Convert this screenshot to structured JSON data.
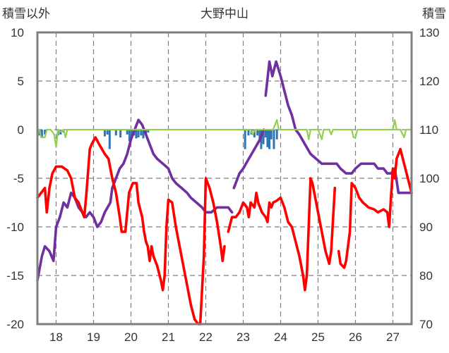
{
  "chart_data": {
    "type": "line",
    "title": "大野中山",
    "left_axis_label": "積雪以外",
    "right_axis_label": "積雪",
    "left_ylim": [
      -20,
      10
    ],
    "left_ticks": [
      "10",
      "5",
      "0",
      "-5",
      "-10",
      "-15",
      "-20"
    ],
    "right_ylim": [
      70,
      130
    ],
    "right_ticks": [
      "130",
      "120",
      "110",
      "100",
      "90",
      "80",
      "70"
    ],
    "x_day_range": [
      17.5,
      27.5
    ],
    "x_ticks": [
      "18",
      "19",
      "20",
      "21",
      "22",
      "23",
      "24",
      "25",
      "26",
      "27"
    ],
    "grid": "dashed vertical and horizontal",
    "colors": {
      "temperature": "#ff0000",
      "snow_depth": "#7030a0",
      "precip_bars": "#2e75b6",
      "green_line": "#92d050",
      "frame": "#7f7f7f"
    },
    "series": [
      {
        "axis": "right",
        "color": "#7030a0",
        "segments": [
          [
            [
              17.5,
              79
            ],
            [
              17.62,
              84
            ],
            [
              17.7,
              86
            ],
            [
              17.82,
              85
            ],
            [
              17.93,
              83
            ],
            [
              18.0,
              90
            ],
            [
              18.1,
              92
            ],
            [
              18.2,
              95
            ],
            [
              18.3,
              94
            ],
            [
              18.4,
              97
            ],
            [
              18.5,
              96
            ],
            [
              18.6,
              94
            ],
            [
              18.7,
              93
            ],
            [
              18.8,
              92
            ],
            [
              18.9,
              93
            ],
            [
              19.0,
              92
            ],
            [
              19.1,
              90
            ],
            [
              19.2,
              91
            ],
            [
              19.3,
              93
            ],
            [
              19.45,
              95
            ],
            [
              19.5,
              98
            ],
            [
              19.6,
              100
            ],
            [
              19.7,
              102
            ],
            [
              19.8,
              103
            ],
            [
              19.9,
              105
            ],
            [
              20.0,
              108
            ],
            [
              20.1,
              110
            ],
            [
              20.2,
              112
            ],
            [
              20.3,
              111
            ],
            [
              20.4,
              109
            ],
            [
              20.5,
              107
            ],
            [
              20.6,
              105
            ],
            [
              20.7,
              104
            ],
            [
              20.85,
              103
            ],
            [
              21.0,
              102
            ],
            [
              21.1,
              100
            ],
            [
              21.2,
              99
            ],
            [
              21.35,
              98
            ],
            [
              21.5,
              97
            ],
            [
              21.6,
              96
            ],
            [
              21.75,
              95
            ],
            [
              21.9,
              94
            ],
            [
              22.0,
              93
            ],
            [
              22.15,
              93
            ],
            [
              22.3,
              94
            ],
            [
              22.45,
              94
            ],
            [
              22.6,
              94
            ],
            [
              22.7,
              93
            ]
          ],
          [
            [
              22.75,
              98
            ],
            [
              22.9,
              101
            ],
            [
              23.0,
              102
            ],
            [
              23.15,
              104
            ],
            [
              23.3,
              106
            ],
            [
              23.45,
              108
            ],
            [
              23.55,
              110
            ]
          ],
          [
            [
              23.6,
              117
            ],
            [
              23.7,
              124
            ],
            [
              23.78,
              121
            ],
            [
              23.88,
              124
            ],
            [
              24.0,
              121
            ],
            [
              24.1,
              118
            ],
            [
              24.2,
              115
            ],
            [
              24.3,
              113
            ],
            [
              24.4,
              110
            ],
            [
              24.5,
              109
            ],
            [
              24.65,
              107
            ],
            [
              24.8,
              105
            ],
            [
              24.95,
              104
            ],
            [
              25.1,
              103
            ],
            [
              25.3,
              103
            ],
            [
              25.5,
              103
            ],
            [
              25.6,
              102
            ],
            [
              25.75,
              101
            ],
            [
              25.9,
              101
            ],
            [
              26.0,
              102
            ],
            [
              26.15,
              103
            ],
            [
              26.35,
              103
            ],
            [
              26.5,
              103
            ],
            [
              26.6,
              102
            ],
            [
              26.75,
              102
            ],
            [
              26.85,
              101
            ],
            [
              26.95,
              101
            ],
            [
              27.05,
              102
            ],
            [
              27.15,
              97
            ],
            [
              27.3,
              97
            ],
            [
              27.5,
              97
            ]
          ]
        ]
      },
      {
        "axis": "left",
        "color": "#ff0000",
        "segments": [
          [
            [
              17.5,
              -7
            ],
            [
              17.6,
              -6.5
            ],
            [
              17.7,
              -6
            ],
            [
              17.75,
              -8.5
            ],
            [
              17.82,
              -6
            ],
            [
              17.9,
              -4.5
            ],
            [
              18.0,
              -3.8
            ],
            [
              18.15,
              -3.8
            ],
            [
              18.3,
              -4.2
            ],
            [
              18.4,
              -5
            ],
            [
              18.5,
              -7
            ],
            [
              18.6,
              -7.5
            ],
            [
              18.7,
              -8.5
            ],
            [
              18.75,
              -9
            ],
            [
              18.8,
              -7
            ],
            [
              18.9,
              -2
            ],
            [
              18.95,
              -1.5
            ],
            [
              19.05,
              -0.8
            ],
            [
              19.15,
              -1.5
            ],
            [
              19.3,
              -2.5
            ],
            [
              19.4,
              -3
            ],
            [
              19.5,
              -5
            ],
            [
              19.6,
              -6.5
            ],
            [
              19.7,
              -9
            ],
            [
              19.75,
              -10.5
            ],
            [
              19.85,
              -10.5
            ],
            [
              19.95,
              -6.5
            ],
            [
              20.05,
              -5.5
            ],
            [
              20.15,
              -5.5
            ],
            [
              20.2,
              -7.5
            ],
            [
              20.3,
              -9
            ],
            [
              20.35,
              -10.5
            ],
            [
              20.4,
              -11.5
            ],
            [
              20.45,
              -12
            ],
            [
              20.5,
              -13.5
            ],
            [
              20.55,
              -12
            ],
            [
              20.6,
              -13
            ],
            [
              20.7,
              -14
            ],
            [
              20.8,
              -15.5
            ],
            [
              20.85,
              -16.5
            ],
            [
              20.9,
              -15
            ],
            [
              20.95,
              -10
            ],
            [
              21.0,
              -7.2
            ],
            [
              21.1,
              -7.5
            ],
            [
              21.2,
              -10
            ],
            [
              21.3,
              -12
            ],
            [
              21.4,
              -14
            ],
            [
              21.5,
              -16
            ],
            [
              21.6,
              -18
            ],
            [
              21.7,
              -19.5
            ],
            [
              21.8,
              -20
            ],
            [
              21.85,
              -20
            ],
            [
              21.95,
              -13
            ],
            [
              22.0,
              -5
            ],
            [
              22.1,
              -6
            ],
            [
              22.2,
              -7.5
            ],
            [
              22.3,
              -9.5
            ],
            [
              22.4,
              -12
            ],
            [
              22.45,
              -13.5
            ],
            [
              22.5,
              -12
            ]
          ],
          [
            [
              22.6,
              -10.5
            ],
            [
              22.7,
              -9
            ],
            [
              22.8,
              -9
            ],
            [
              22.9,
              -8.5
            ],
            [
              23.0,
              -7.5
            ],
            [
              23.1,
              -8
            ],
            [
              23.15,
              -9
            ],
            [
              23.2,
              -7.5
            ],
            [
              23.3,
              -8
            ],
            [
              23.35,
              -6.5
            ],
            [
              23.4,
              -7.5
            ],
            [
              23.5,
              -8.5
            ],
            [
              23.6,
              -9
            ],
            [
              23.65,
              -9.5
            ],
            [
              23.7,
              -7.5
            ],
            [
              23.75,
              -8
            ],
            [
              23.8,
              -7.5
            ],
            [
              23.9,
              -7.3
            ],
            [
              24.0,
              -7
            ],
            [
              24.1,
              -8
            ],
            [
              24.2,
              -9.5
            ],
            [
              24.3,
              -10
            ],
            [
              24.4,
              -11.5
            ],
            [
              24.5,
              -13
            ],
            [
              24.6,
              -15
            ],
            [
              24.65,
              -16.5
            ],
            [
              24.7,
              -15
            ],
            [
              24.8,
              -5
            ],
            [
              24.85,
              -5.5
            ],
            [
              24.9,
              -6.5
            ],
            [
              25.0,
              -8.5
            ],
            [
              25.1,
              -10.5
            ],
            [
              25.2,
              -12.5
            ],
            [
              25.3,
              -13.8
            ],
            [
              25.35,
              -12.5
            ],
            [
              25.45,
              -6
            ]
          ],
          [
            [
              25.55,
              -12.5
            ],
            [
              25.6,
              -13.8
            ],
            [
              25.7,
              -14.2
            ],
            [
              25.75,
              -13.5
            ],
            [
              25.8,
              -12
            ],
            [
              25.85,
              -10.5
            ],
            [
              25.9,
              -5.5
            ],
            [
              26.0,
              -6
            ],
            [
              26.1,
              -7
            ],
            [
              26.2,
              -7.5
            ],
            [
              26.35,
              -8
            ],
            [
              26.5,
              -8.2
            ],
            [
              26.6,
              -8.5
            ],
            [
              26.75,
              -8.2
            ],
            [
              26.85,
              -8.5
            ],
            [
              26.9,
              -10
            ],
            [
              26.95,
              -7
            ],
            [
              27.0,
              -4
            ],
            [
              27.05,
              -5
            ],
            [
              27.1,
              -3
            ],
            [
              27.2,
              -2
            ],
            [
              27.3,
              -3.5
            ],
            [
              27.4,
              -5
            ],
            [
              27.5,
              -6.5
            ]
          ]
        ]
      },
      {
        "axis": "left",
        "color": "#92d050",
        "segments": [
          [
            [
              17.5,
              0
            ],
            [
              17.55,
              0
            ],
            [
              17.6,
              -0.8
            ],
            [
              17.7,
              -0.8
            ],
            [
              17.75,
              0
            ],
            [
              17.85,
              0
            ],
            [
              17.95,
              -0.5
            ],
            [
              18.0,
              -1.8
            ],
            [
              18.05,
              0
            ],
            [
              18.12,
              -0.2
            ],
            [
              18.2,
              0
            ],
            [
              18.25,
              -0.8
            ],
            [
              18.3,
              0
            ],
            [
              23.1,
              0
            ],
            [
              23.2,
              0
            ],
            [
              23.25,
              -0.5
            ],
            [
              23.32,
              0
            ],
            [
              23.8,
              0
            ],
            [
              23.9,
              1
            ],
            [
              23.95,
              0
            ],
            [
              24.7,
              0
            ],
            [
              24.75,
              -1
            ],
            [
              24.8,
              0
            ],
            [
              25.0,
              0
            ],
            [
              25.05,
              -0.5
            ],
            [
              25.1,
              -1
            ],
            [
              25.15,
              0
            ],
            [
              25.3,
              0
            ],
            [
              25.35,
              -0.5
            ],
            [
              25.4,
              0
            ],
            [
              25.9,
              0
            ],
            [
              25.95,
              -0.8
            ],
            [
              26.0,
              -0.8
            ],
            [
              26.05,
              0
            ],
            [
              26.9,
              0
            ],
            [
              27.0,
              0
            ],
            [
              27.05,
              1
            ],
            [
              27.1,
              0
            ],
            [
              27.2,
              0
            ],
            [
              27.3,
              -0.8
            ],
            [
              27.35,
              0
            ],
            [
              27.5,
              0
            ]
          ]
        ]
      }
    ],
    "bars": {
      "axis": "left",
      "color": "#2e75b6",
      "points": [
        [
          17.56,
          -0.6
        ],
        [
          17.62,
          -0.8
        ],
        [
          17.7,
          -0.5
        ],
        [
          18.05,
          -0.6
        ],
        [
          18.12,
          -0.5
        ],
        [
          18.2,
          -0.3
        ],
        [
          19.3,
          -0.7
        ],
        [
          19.37,
          -0.5
        ],
        [
          19.43,
          -2.0
        ],
        [
          19.6,
          -0.6
        ],
        [
          19.72,
          -0.8
        ],
        [
          19.9,
          -0.5
        ],
        [
          19.96,
          -1.2
        ],
        [
          20.02,
          -0.8
        ],
        [
          20.08,
          -0.6
        ],
        [
          20.14,
          -0.9
        ],
        [
          20.2,
          -0.8
        ],
        [
          20.27,
          -0.6
        ],
        [
          20.33,
          -0.9
        ],
        [
          20.4,
          -0.5
        ],
        [
          20.46,
          -0.3
        ],
        [
          23.05,
          -2.0
        ],
        [
          23.14,
          -0.6
        ],
        [
          23.22,
          -0.5
        ],
        [
          23.3,
          -0.8
        ],
        [
          23.38,
          -0.6
        ],
        [
          23.44,
          -1.2
        ],
        [
          23.48,
          -2.0
        ],
        [
          23.54,
          -1.5
        ],
        [
          23.6,
          -0.8
        ],
        [
          23.65,
          -1.8
        ],
        [
          23.7,
          -2.0
        ],
        [
          23.75,
          -1.0
        ],
        [
          23.82,
          -2.0
        ],
        [
          23.9,
          -1.0
        ]
      ]
    }
  }
}
